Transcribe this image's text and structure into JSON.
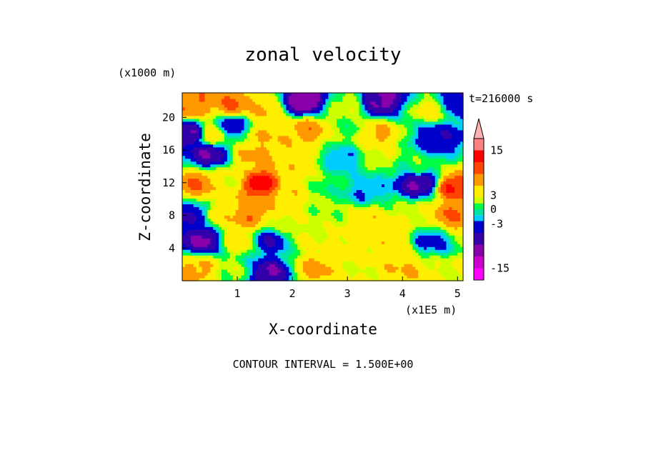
{
  "chart_data": {
    "type": "heatmap",
    "title": "zonal velocity",
    "xlabel": "X-coordinate",
    "ylabel": "Z-coordinate",
    "x_unit": "(x1E5 m)",
    "z_unit": "(x1000 m)",
    "time_label": "t=216000 s",
    "footer": "CONTOUR INTERVAL = 1.500E+00",
    "xlim": [
      0,
      5.1
    ],
    "ylim": [
      0,
      23
    ],
    "x_ticks": [
      "1",
      "2",
      "3",
      "4",
      "5"
    ],
    "y_ticks": [
      "4",
      "8",
      "12",
      "16",
      "20"
    ],
    "colorbar": {
      "tick_labels": [
        "15",
        "3",
        "0",
        "-3",
        "-15"
      ],
      "tick_values": [
        15,
        3,
        0,
        -3,
        -15
      ],
      "range": [
        -18,
        18
      ],
      "levels": [
        -18,
        -15,
        -12,
        -9,
        -6,
        -3,
        -1.5,
        0,
        1.5,
        3,
        6,
        9,
        12,
        15,
        18
      ],
      "colors": [
        "#ff00ff",
        "#cc00cc",
        "#8800aa",
        "#3300aa",
        "#0000cc",
        "#00ccff",
        "#00e6a0",
        "#00ff44",
        "#ccff00",
        "#ffee00",
        "#ff9900",
        "#ff4400",
        "#ff0000",
        "#ff8080",
        "#ffb0b0"
      ]
    },
    "centers": [
      {
        "x": 0.2,
        "z": 21.5,
        "v": 9
      },
      {
        "x": 0.9,
        "z": 21.5,
        "v": 9
      },
      {
        "x": 1.5,
        "z": 21,
        "v": 6
      },
      {
        "x": 2.2,
        "z": 22,
        "v": -12
      },
      {
        "x": 3.0,
        "z": 21.5,
        "v": 3
      },
      {
        "x": 3.6,
        "z": 22,
        "v": -10
      },
      {
        "x": 4.5,
        "z": 21,
        "v": 4
      },
      {
        "x": 5.0,
        "z": 22,
        "v": -6
      },
      {
        "x": 0.15,
        "z": 18,
        "v": -9
      },
      {
        "x": 0.55,
        "z": 18,
        "v": 6
      },
      {
        "x": 0.9,
        "z": 19,
        "v": -6
      },
      {
        "x": 1.55,
        "z": 18,
        "v": 6
      },
      {
        "x": 2.3,
        "z": 18.5,
        "v": 8
      },
      {
        "x": 3.0,
        "z": 18.5,
        "v": 1
      },
      {
        "x": 3.55,
        "z": 18,
        "v": 7
      },
      {
        "x": 4.6,
        "z": 17.5,
        "v": -6
      },
      {
        "x": 0.5,
        "z": 15.5,
        "v": -9
      },
      {
        "x": 1.3,
        "z": 15.5,
        "v": 7
      },
      {
        "x": 2.0,
        "z": 14.5,
        "v": 5
      },
      {
        "x": 2.9,
        "z": 15,
        "v": -3
      },
      {
        "x": 3.6,
        "z": 15.5,
        "v": 3
      },
      {
        "x": 4.3,
        "z": 14,
        "v": 1
      },
      {
        "x": 0.25,
        "z": 12,
        "v": 9
      },
      {
        "x": 0.9,
        "z": 12.5,
        "v": 3
      },
      {
        "x": 1.4,
        "z": 12,
        "v": 14
      },
      {
        "x": 2.0,
        "z": 11,
        "v": 5
      },
      {
        "x": 2.6,
        "z": 11.5,
        "v": 0.5
      },
      {
        "x": 3.3,
        "z": 11,
        "v": -3
      },
      {
        "x": 4.3,
        "z": 12,
        "v": -10
      },
      {
        "x": 4.95,
        "z": 11.5,
        "v": 12
      },
      {
        "x": 0.2,
        "z": 8,
        "v": -6
      },
      {
        "x": 0.7,
        "z": 8,
        "v": 5
      },
      {
        "x": 1.2,
        "z": 8,
        "v": 9
      },
      {
        "x": 1.9,
        "z": 7,
        "v": 3
      },
      {
        "x": 2.6,
        "z": 8,
        "v": 2
      },
      {
        "x": 3.4,
        "z": 7.5,
        "v": 5
      },
      {
        "x": 4.2,
        "z": 8,
        "v": 3
      },
      {
        "x": 4.9,
        "z": 8,
        "v": 9
      },
      {
        "x": 0.4,
        "z": 5,
        "v": -10
      },
      {
        "x": 1.0,
        "z": 5,
        "v": 5
      },
      {
        "x": 1.6,
        "z": 5,
        "v": -6
      },
      {
        "x": 2.3,
        "z": 5,
        "v": 3
      },
      {
        "x": 3.0,
        "z": 4.5,
        "v": 4
      },
      {
        "x": 3.8,
        "z": 5,
        "v": 5
      },
      {
        "x": 4.5,
        "z": 5,
        "v": -4
      },
      {
        "x": 0.3,
        "z": 1.5,
        "v": 7
      },
      {
        "x": 0.9,
        "z": 1,
        "v": 2
      },
      {
        "x": 1.6,
        "z": 1,
        "v": -9
      },
      {
        "x": 2.4,
        "z": 1.5,
        "v": 7
      },
      {
        "x": 3.2,
        "z": 1,
        "v": 3
      },
      {
        "x": 4.0,
        "z": 1.5,
        "v": 6
      },
      {
        "x": 4.9,
        "z": 1,
        "v": 3
      }
    ]
  }
}
